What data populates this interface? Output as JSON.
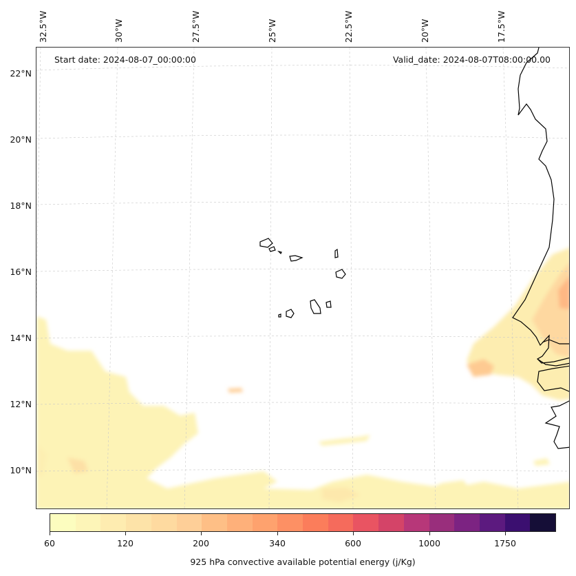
{
  "map": {
    "start_date": "Start date: 2024-08-07_00:00:00",
    "valid_date": "Valid_date: 2024-08-07T08:00:00.00",
    "lon_labels": [
      "32.5°W",
      "30°W",
      "27.5°W",
      "25°W",
      "22.5°W",
      "20°W",
      "17.5°W"
    ],
    "lat_labels": [
      "22°N",
      "20°N",
      "18°N",
      "16°N",
      "14°N",
      "12°N",
      "10°N"
    ]
  },
  "colorbar": {
    "tick_labels": [
      "60",
      "120",
      "200",
      "340",
      "600",
      "1000",
      "1750"
    ],
    "title": "925 hPa convective available potential energy (j/Kg)",
    "colors": [
      "#fcfdbf",
      "#fdf5b8",
      "#feecb0",
      "#fde3a8",
      "#fedaa0",
      "#fecf98",
      "#febf86",
      "#feb07a",
      "#fea26e",
      "#fd9064",
      "#fb7d5b",
      "#f56b5c",
      "#e95462",
      "#d44468",
      "#b73779",
      "#992e7c",
      "#7c2382",
      "#5c1a7f",
      "#3b0f70",
      "#150e37"
    ]
  }
}
